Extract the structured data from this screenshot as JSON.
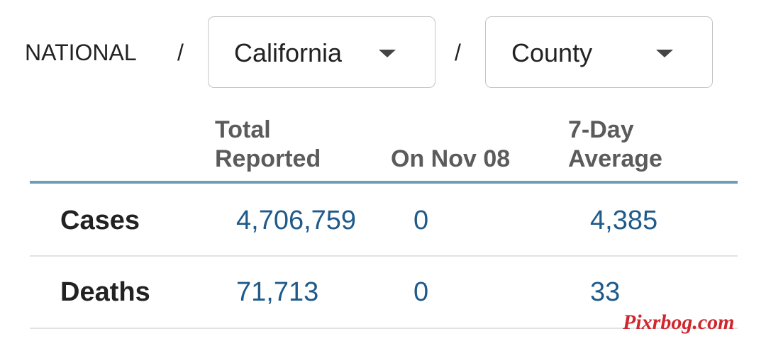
{
  "breadcrumb": {
    "root": "NATIONAL",
    "separators": [
      "/",
      "/"
    ],
    "state_select": "California",
    "county_select": "County"
  },
  "table": {
    "columns": [
      [
        "Total",
        "Reported"
      ],
      [
        "On Nov 08"
      ],
      [
        "7-Day",
        "Average"
      ]
    ],
    "rows": [
      [
        "Cases",
        "4,706,759",
        "0",
        "4,385"
      ],
      [
        "Deaths",
        "71,713",
        "0",
        "33"
      ]
    ]
  },
  "watermark": "Pixrbog.com"
}
